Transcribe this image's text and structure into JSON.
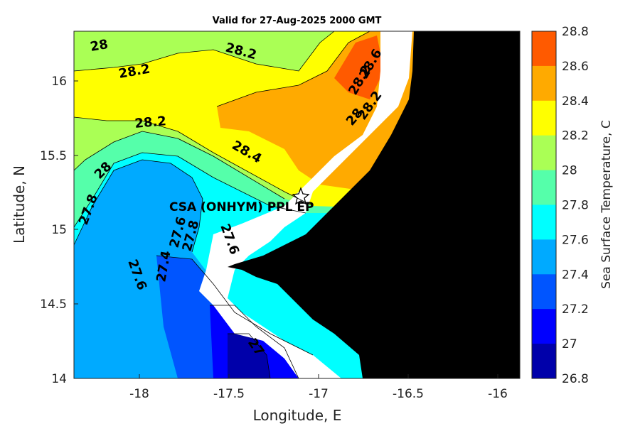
{
  "title": "Valid for 27-Aug-2025 2000 GMT",
  "x_axis": {
    "label": "Longitude, E",
    "ticks": [
      "-18",
      "-17.5",
      "-17",
      "-16.5",
      "-16"
    ]
  },
  "y_axis": {
    "label": "Latitude, N",
    "ticks": [
      "16",
      "15.5",
      "15",
      "14.5",
      "14"
    ]
  },
  "colorbar": {
    "label": "Sea Surface Temperature, C",
    "ticks": [
      "28.8",
      "28.6",
      "28.4",
      "28.2",
      "28",
      "27.8",
      "27.6",
      "27.4",
      "27.2",
      "27",
      "26.8"
    ],
    "colors": [
      "#ff5a00",
      "#ffaa00",
      "#ffff00",
      "#aaff55",
      "#55ffaa",
      "#00ffff",
      "#00aaff",
      "#0055ff",
      "#0000ff",
      "#0000aa"
    ]
  },
  "site_label": "CSA (ONHYM) PPL EP",
  "contour_labels": [
    "28",
    "28.2",
    "28.2",
    "28.2",
    "28.4",
    "28",
    "27.8",
    "27.6",
    "27.6",
    "27.8",
    "27.4",
    "27.6",
    "27",
    "28.6",
    "28.2",
    "28",
    "28.2"
  ],
  "land_color": "#000000"
}
